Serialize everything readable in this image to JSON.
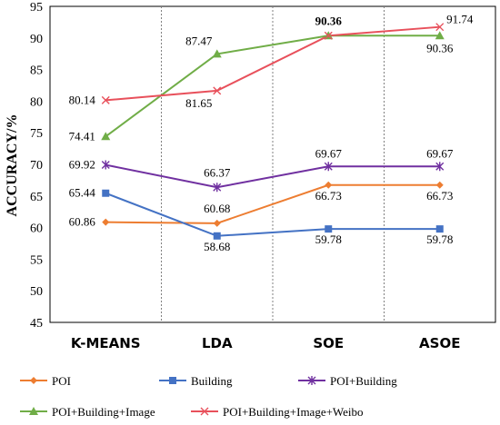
{
  "chart_data": {
    "type": "line",
    "categories": [
      "K-MEANS",
      "LDA",
      "SOE",
      "ASOE"
    ],
    "ylabel": "ACCURACY/%",
    "ylim": [
      45,
      95
    ],
    "yticks": [
      45,
      50,
      55,
      60,
      65,
      70,
      75,
      80,
      85,
      90,
      95
    ],
    "grid": "vertical dotted separators between categories",
    "legend_position": "bottom",
    "series": [
      {
        "name": "POI",
        "color": "#ED7D31",
        "marker": "diamond",
        "values": [
          60.86,
          60.68,
          66.73,
          66.73
        ],
        "labels": [
          "60.86",
          "60.68",
          "66.73",
          "66.73"
        ]
      },
      {
        "name": "Building",
        "color": "#4472C4",
        "marker": "square",
        "values": [
          65.44,
          58.68,
          59.78,
          59.78
        ],
        "labels": [
          "65.44",
          "58.68",
          "59.78",
          "59.78"
        ]
      },
      {
        "name": "POI+Building",
        "color": "#7030A0",
        "marker": "asterisk",
        "values": [
          69.92,
          66.37,
          69.67,
          69.67
        ],
        "labels": [
          "69.92",
          "66.37",
          "69.67",
          "69.67"
        ]
      },
      {
        "name": "POI+Building+Image",
        "color": "#70AD47",
        "marker": "triangle",
        "values": [
          74.41,
          87.47,
          90.36,
          90.36
        ],
        "labels": [
          "74.41",
          "87.47",
          "90.36",
          "90.36"
        ]
      },
      {
        "name": "POI+Building+Image+Weibo",
        "color": "#E8505B",
        "marker": "x",
        "values": [
          80.14,
          81.65,
          90.36,
          91.74
        ],
        "labels": [
          "80.14",
          "81.65",
          "",
          "91.74"
        ]
      }
    ]
  }
}
